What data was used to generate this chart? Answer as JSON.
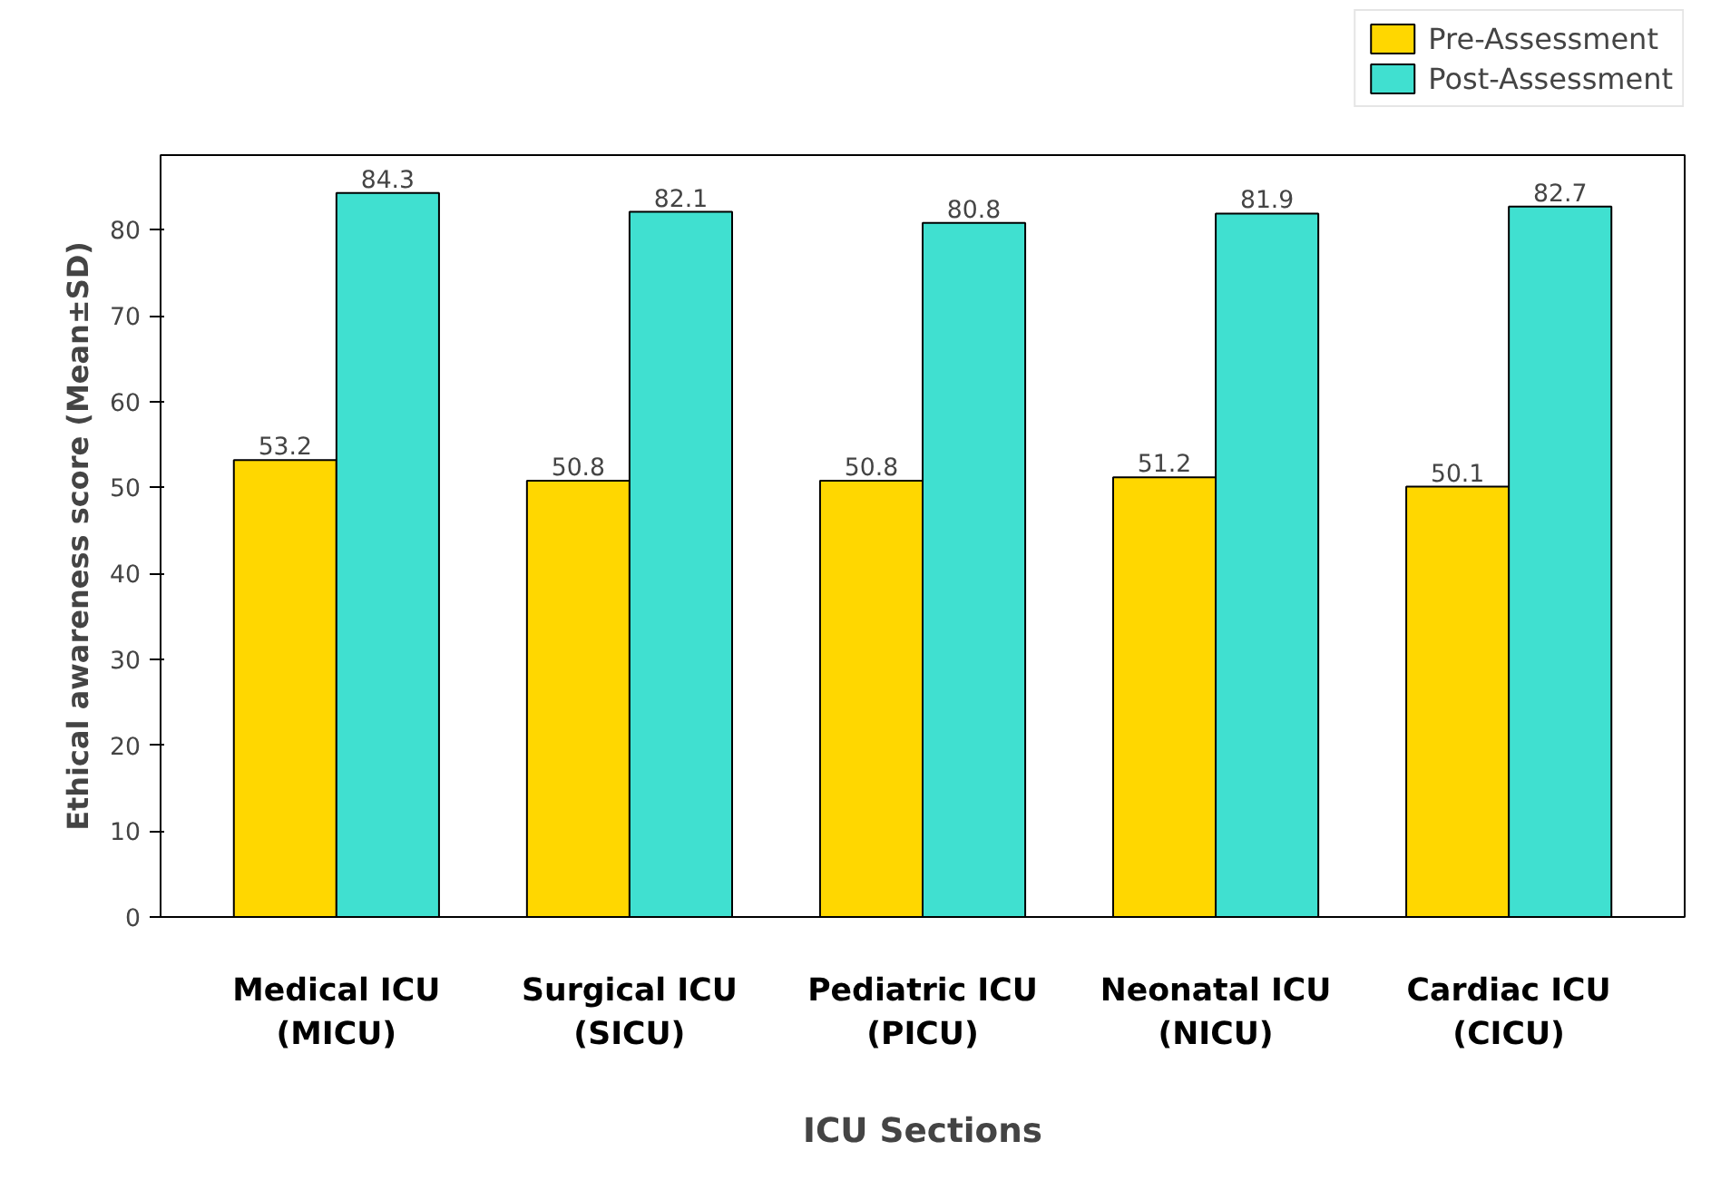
{
  "chart_data": {
    "type": "bar",
    "xlabel": "ICU Sections",
    "ylabel": "Ethical awareness score (Mean±SD)",
    "categories": [
      "Medical ICU\n(MICU)",
      "Surgical ICU\n(SICU)",
      "Pediatric ICU\n(PICU)",
      "Neonatal ICU\n(NICU)",
      "Cardiac ICU\n(CICU)"
    ],
    "series": [
      {
        "name": "Pre-Assessment",
        "color": "#ffd700",
        "values": [
          53.2,
          50.8,
          50.8,
          51.2,
          50.1
        ]
      },
      {
        "name": "Post-Assessment",
        "color": "#40e0d0",
        "values": [
          84.3,
          82.1,
          80.8,
          81.9,
          82.7
        ]
      }
    ],
    "ylim": [
      0,
      88.7
    ],
    "yticks": [
      0,
      10,
      20,
      30,
      40,
      50,
      60,
      70,
      80
    ],
    "data_labels": true,
    "grid": false,
    "legend": "top right"
  }
}
